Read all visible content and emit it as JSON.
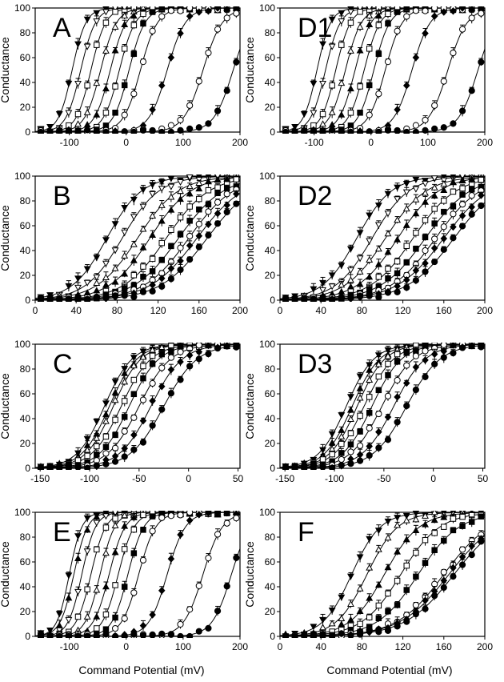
{
  "figure": {
    "ylabel": "Conductance",
    "xlabel": "Command Potential (mV)"
  },
  "chart_data": [
    {
      "panel": "A",
      "type": "scatter",
      "xlim": [
        -160,
        200
      ],
      "ylim": [
        0,
        100
      ],
      "xticks": [
        -100,
        0,
        100,
        200
      ],
      "yticks": [
        0,
        20,
        40,
        60,
        80,
        100
      ],
      "series": [
        {
          "marker": "filled-triangle-down",
          "v_half": -95,
          "slope": 12
        },
        {
          "marker": "open-triangle-down",
          "v_half": -80,
          "slope": 13
        },
        {
          "marker": "open-square",
          "v_half": -62,
          "slope": 13
        },
        {
          "marker": "open-triangle-up",
          "v_half": -45,
          "slope": 14
        },
        {
          "marker": "filled-triangle-up",
          "v_half": -28,
          "slope": 14
        },
        {
          "marker": "open-square-2",
          "v_half": -12,
          "slope": 14
        },
        {
          "marker": "filled-square",
          "v_half": 5,
          "slope": 14
        },
        {
          "marker": "open-circle",
          "v_half": 25,
          "slope": 15
        },
        {
          "marker": "filled-diamond",
          "v_half": 72,
          "slope": 16
        },
        {
          "marker": "open-circle-2",
          "v_half": 135,
          "slope": 17
        },
        {
          "marker": "filled-circle",
          "v_half": 188,
          "slope": 17
        }
      ]
    },
    {
      "panel": "D1",
      "type": "scatter",
      "xlim": [
        -160,
        200
      ],
      "ylim": [
        0,
        100
      ],
      "xticks": [
        -100,
        0,
        100,
        200
      ],
      "yticks": [
        0,
        20,
        40,
        60,
        80,
        100
      ],
      "series": [
        {
          "marker": "filled-triangle-down",
          "v_half": -95,
          "slope": 12
        },
        {
          "marker": "open-triangle-down",
          "v_half": -80,
          "slope": 13
        },
        {
          "marker": "open-square",
          "v_half": -62,
          "slope": 13
        },
        {
          "marker": "open-triangle-up",
          "v_half": -45,
          "slope": 14
        },
        {
          "marker": "filled-triangle-up",
          "v_half": -28,
          "slope": 14
        },
        {
          "marker": "open-square-2",
          "v_half": -12,
          "slope": 14
        },
        {
          "marker": "filled-square",
          "v_half": 5,
          "slope": 14
        },
        {
          "marker": "open-circle",
          "v_half": 25,
          "slope": 15
        },
        {
          "marker": "filled-diamond",
          "v_half": 72,
          "slope": 16
        },
        {
          "marker": "open-circle-2",
          "v_half": 135,
          "slope": 17
        },
        {
          "marker": "filled-circle",
          "v_half": 188,
          "slope": 17
        }
      ]
    },
    {
      "panel": "B",
      "type": "scatter",
      "xlim": [
        0,
        200
      ],
      "ylim": [
        0,
        100
      ],
      "xticks": [
        0,
        40,
        80,
        120,
        160,
        200
      ],
      "yticks": [
        0,
        20,
        40,
        60,
        80,
        100
      ],
      "series": [
        {
          "marker": "filled-triangle-down",
          "v_half": 70,
          "slope": 17
        },
        {
          "marker": "open-triangle-down",
          "v_half": 85,
          "slope": 18
        },
        {
          "marker": "open-triangle-up",
          "v_half": 100,
          "slope": 20
        },
        {
          "marker": "filled-triangle-up",
          "v_half": 112,
          "slope": 20
        },
        {
          "marker": "open-square",
          "v_half": 128,
          "slope": 21
        },
        {
          "marker": "filled-square",
          "v_half": 140,
          "slope": 22
        },
        {
          "marker": "open-circle",
          "v_half": 150,
          "slope": 22
        },
        {
          "marker": "filled-diamond",
          "v_half": 158,
          "slope": 23
        },
        {
          "marker": "filled-circle",
          "v_half": 168,
          "slope": 23
        }
      ]
    },
    {
      "panel": "D2",
      "type": "scatter",
      "xlim": [
        0,
        200
      ],
      "ylim": [
        0,
        100
      ],
      "xticks": [
        0,
        40,
        80,
        120,
        160,
        200
      ],
      "yticks": [
        0,
        20,
        40,
        60,
        80,
        100
      ],
      "series": [
        {
          "marker": "filled-triangle-down",
          "v_half": 75,
          "slope": 17
        },
        {
          "marker": "open-triangle-down",
          "v_half": 90,
          "slope": 18
        },
        {
          "marker": "open-triangle-up",
          "v_half": 103,
          "slope": 20
        },
        {
          "marker": "filled-triangle-up",
          "v_half": 115,
          "slope": 20
        },
        {
          "marker": "open-square",
          "v_half": 130,
          "slope": 21
        },
        {
          "marker": "filled-square",
          "v_half": 142,
          "slope": 22
        },
        {
          "marker": "open-circle",
          "v_half": 152,
          "slope": 22
        },
        {
          "marker": "filled-diamond",
          "v_half": 160,
          "slope": 23
        },
        {
          "marker": "filled-circle",
          "v_half": 170,
          "slope": 23
        }
      ]
    },
    {
      "panel": "C",
      "type": "scatter",
      "xlim": [
        -155,
        52
      ],
      "ylim": [
        0,
        100
      ],
      "xticks": [
        -150,
        -100,
        -50,
        0,
        50
      ],
      "yticks": [
        0,
        20,
        40,
        60,
        80,
        100
      ],
      "series": [
        {
          "marker": "filled-triangle-down",
          "v_half": -85,
          "slope": 14
        },
        {
          "marker": "filled-triangle-up",
          "v_half": -80,
          "slope": 14
        },
        {
          "marker": "open-triangle-up",
          "v_half": -76,
          "slope": 14
        },
        {
          "marker": "open-square",
          "v_half": -68,
          "slope": 15
        },
        {
          "marker": "filled-square",
          "v_half": -60,
          "slope": 15
        },
        {
          "marker": "open-circle",
          "v_half": -50,
          "slope": 16
        },
        {
          "marker": "filled-diamond",
          "v_half": -38,
          "slope": 16
        },
        {
          "marker": "filled-circle",
          "v_half": -25,
          "slope": 17
        }
      ]
    },
    {
      "panel": "D3",
      "type": "scatter",
      "xlim": [
        -155,
        52
      ],
      "ylim": [
        0,
        100
      ],
      "xticks": [
        -150,
        -100,
        -50,
        0,
        50
      ],
      "yticks": [
        0,
        20,
        40,
        60,
        80,
        100
      ],
      "series": [
        {
          "marker": "filled-triangle-down",
          "v_half": -88,
          "slope": 14
        },
        {
          "marker": "filled-triangle-up",
          "v_half": -82,
          "slope": 14
        },
        {
          "marker": "open-triangle-up",
          "v_half": -77,
          "slope": 14
        },
        {
          "marker": "open-square",
          "v_half": -70,
          "slope": 15
        },
        {
          "marker": "filled-square",
          "v_half": -62,
          "slope": 15
        },
        {
          "marker": "open-circle",
          "v_half": -52,
          "slope": 16
        },
        {
          "marker": "filled-diamond",
          "v_half": -40,
          "slope": 16
        },
        {
          "marker": "filled-circle",
          "v_half": -27,
          "slope": 17
        }
      ]
    },
    {
      "panel": "E",
      "type": "scatter",
      "xlim": [
        -160,
        200
      ],
      "ylim": [
        0,
        100
      ],
      "xticks": [
        -100,
        0,
        100,
        200
      ],
      "yticks": [
        0,
        20,
        40,
        60,
        80,
        100
      ],
      "series": [
        {
          "marker": "filled-triangle-down",
          "v_half": -100,
          "slope": 11
        },
        {
          "marker": "filled-triangle-up",
          "v_half": -92,
          "slope": 12
        },
        {
          "marker": "open-triangle-down",
          "v_half": -78,
          "slope": 12
        },
        {
          "marker": "open-square",
          "v_half": -62,
          "slope": 13
        },
        {
          "marker": "open-triangle-up",
          "v_half": -46,
          "slope": 13
        },
        {
          "marker": "filled-triangle-up-2",
          "v_half": -30,
          "slope": 14
        },
        {
          "marker": "open-square-2",
          "v_half": -14,
          "slope": 14
        },
        {
          "marker": "filled-square",
          "v_half": 3,
          "slope": 14
        },
        {
          "marker": "open-circle",
          "v_half": 22,
          "slope": 15
        },
        {
          "marker": "filled-diamond",
          "v_half": 72,
          "slope": 16
        },
        {
          "marker": "open-circle-2",
          "v_half": 135,
          "slope": 17
        },
        {
          "marker": "filled-circle",
          "v_half": 185,
          "slope": 17
        }
      ]
    },
    {
      "panel": "F",
      "type": "scatter",
      "xlim": [
        0,
        200
      ],
      "ylim": [
        0,
        100
      ],
      "xticks": [
        0,
        40,
        80,
        120,
        160,
        200
      ],
      "yticks": [
        0,
        20,
        40,
        60,
        80,
        100
      ],
      "series": [
        {
          "marker": "filled-triangle-down",
          "v_half": 70,
          "slope": 14
        },
        {
          "marker": "open-triangle-up",
          "v_half": 85,
          "slope": 15
        },
        {
          "marker": "filled-triangle-up",
          "v_half": 102,
          "slope": 17
        },
        {
          "marker": "open-square",
          "v_half": 118,
          "slope": 19
        },
        {
          "marker": "filled-square",
          "v_half": 135,
          "slope": 20
        },
        {
          "marker": "open-circle",
          "v_half": 160,
          "slope": 23
        },
        {
          "marker": "filled-diamond",
          "v_half": 165,
          "slope": 24
        },
        {
          "marker": "filled-circle",
          "v_half": 170,
          "slope": 24
        }
      ]
    }
  ]
}
